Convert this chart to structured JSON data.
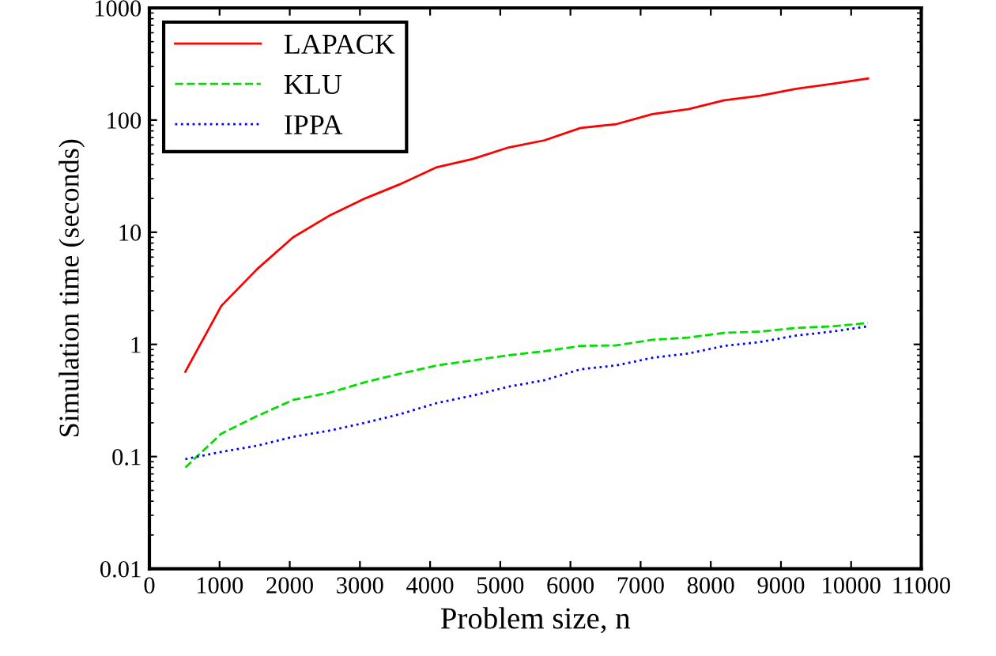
{
  "chart_data": {
    "type": "line",
    "xlabel": "Problem size, n",
    "ylabel": "Simulation time (seconds)",
    "x": [
      512,
      1024,
      1536,
      2048,
      2560,
      3072,
      3584,
      4096,
      4608,
      5120,
      5632,
      6144,
      6656,
      7168,
      7680,
      8192,
      8704,
      9216,
      9728,
      10240
    ],
    "series": [
      {
        "name": "LAPACK",
        "color": "#ff0000",
        "line_style": "solid",
        "values": [
          0.57,
          2.2,
          4.7,
          9,
          14,
          20,
          27,
          38,
          45,
          57,
          66,
          85,
          92,
          113,
          125,
          150,
          165,
          190,
          210,
          235
        ]
      },
      {
        "name": "KLU",
        "color": "#00dd00",
        "line_style": "dashed",
        "values": [
          0.08,
          0.16,
          0.23,
          0.32,
          0.37,
          0.46,
          0.55,
          0.65,
          0.72,
          0.8,
          0.87,
          0.97,
          0.98,
          1.1,
          1.15,
          1.27,
          1.3,
          1.4,
          1.45,
          1.55
        ]
      },
      {
        "name": "IPPA",
        "color": "#0000ff",
        "line_style": "dotted",
        "values": [
          0.095,
          0.11,
          0.125,
          0.15,
          0.17,
          0.2,
          0.24,
          0.3,
          0.35,
          0.42,
          0.48,
          0.6,
          0.65,
          0.76,
          0.83,
          0.97,
          1.05,
          1.2,
          1.3,
          1.45
        ]
      }
    ],
    "log": "y",
    "xlim": [
      0,
      11000
    ],
    "ylim": [
      0.01,
      1000
    ],
    "xticks": [
      0,
      1000,
      2000,
      3000,
      4000,
      5000,
      6000,
      7000,
      8000,
      9000,
      10000,
      11000
    ],
    "yticks": [
      0.01,
      0.1,
      1,
      10,
      100,
      1000
    ],
    "grid": false,
    "legend": "top left",
    "marker": "none"
  }
}
